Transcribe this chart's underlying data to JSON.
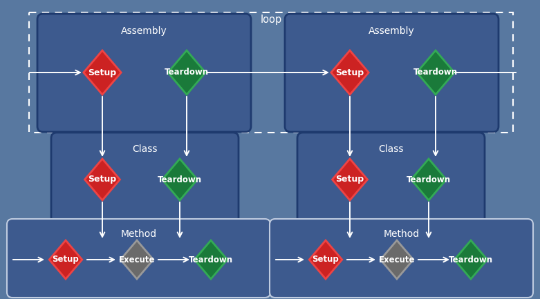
{
  "bg_color": "#5878a0",
  "box_color": "#3d5a8e",
  "box_border_dark": "#1e3a6e",
  "box_border_white": "#c0cce0",
  "red_fill": "#cc2222",
  "red_border": "#ee4444",
  "green_fill": "#1a7a3a",
  "green_border": "#33aa55",
  "gray_fill": "#6a6a6a",
  "gray_border": "#999999",
  "white": "#ffffff",
  "loop_label": "loop",
  "assembly_label": "Assembly",
  "class_label": "Class",
  "method_label": "Method",
  "setup_label": "Setup",
  "teardown_label": "Teardown",
  "execute_label": "Execute",
  "fig_w": 7.81,
  "fig_h": 4.33,
  "dpi": 100
}
